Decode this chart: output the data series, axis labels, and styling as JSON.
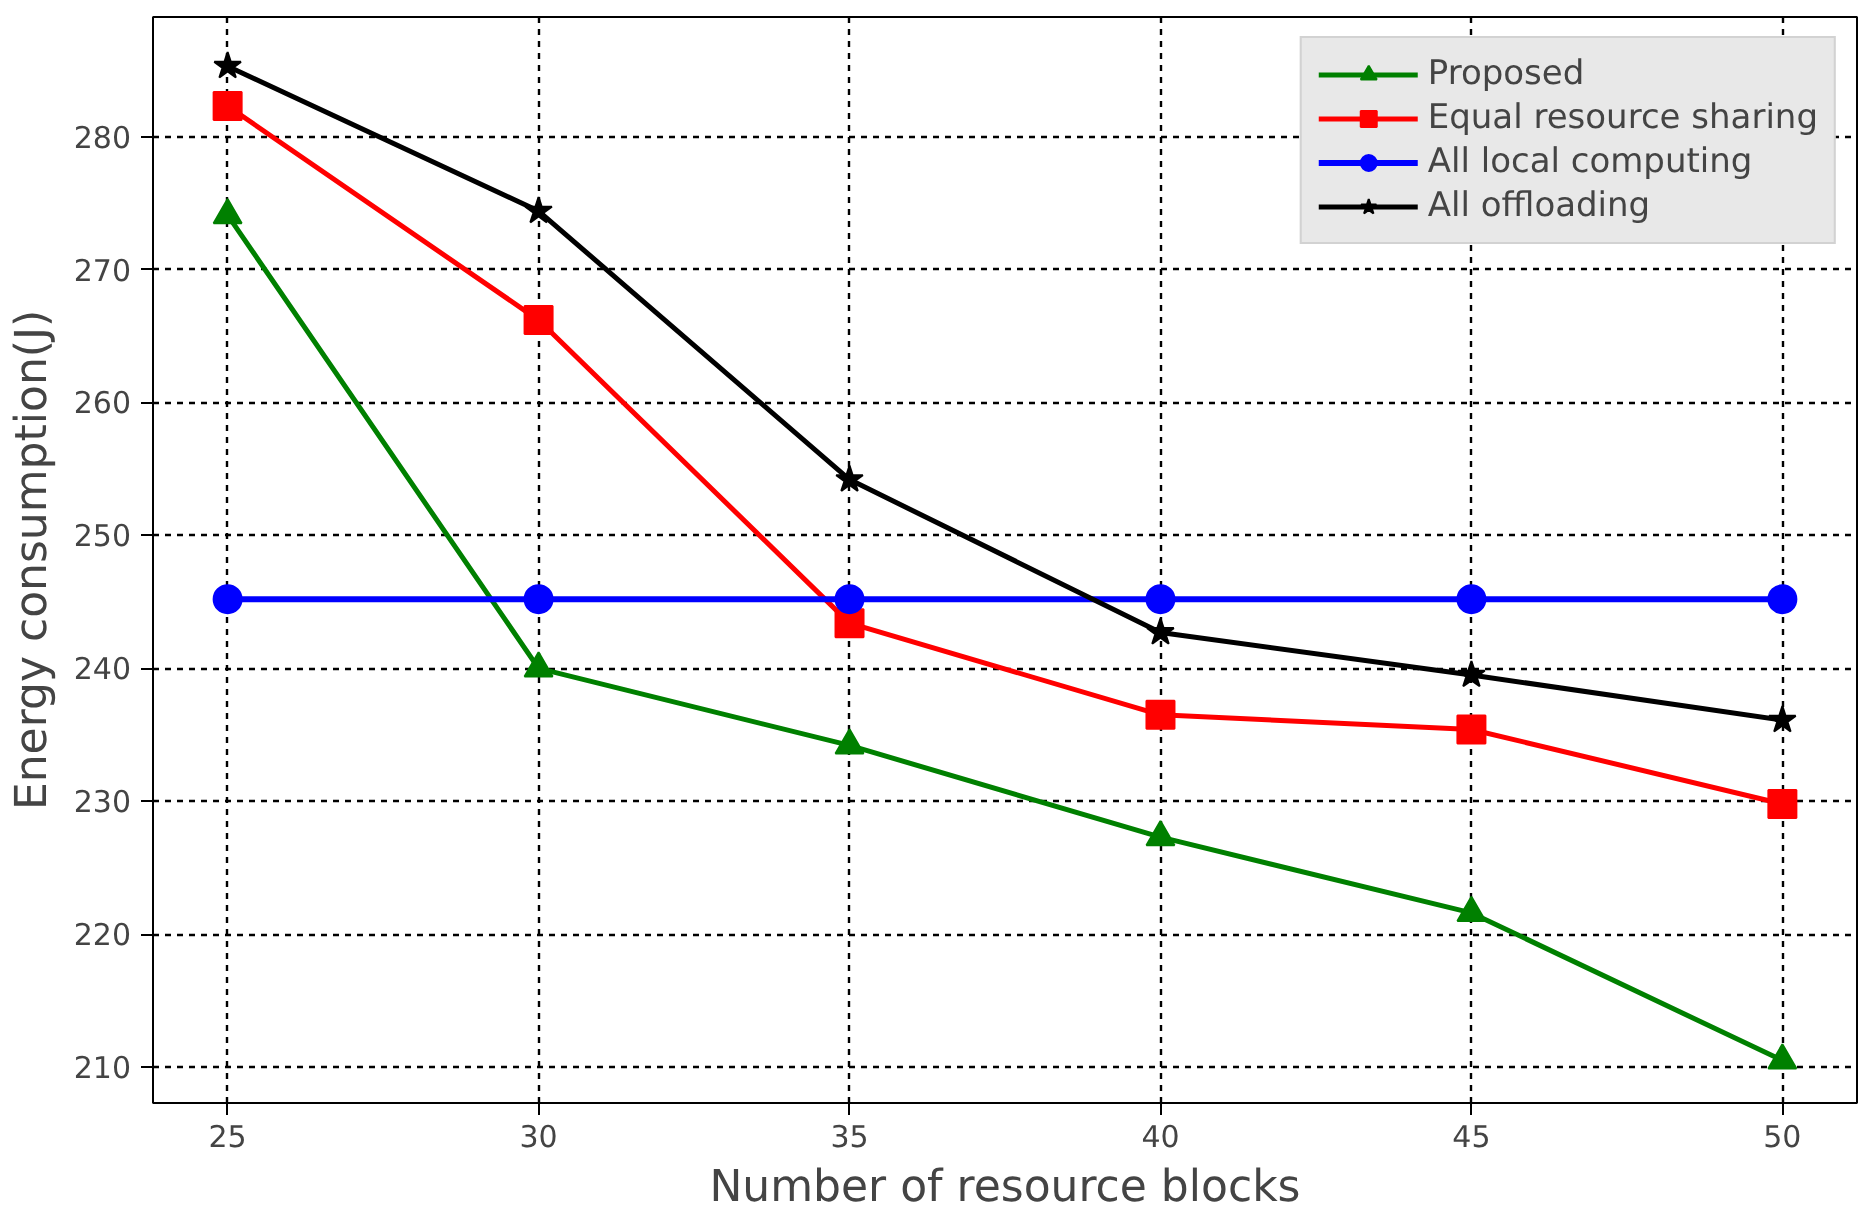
{
  "chart_data": {
    "type": "line",
    "xlabel": "Number of resource blocks",
    "ylabel": "Energy consumption(J)",
    "x": [
      25,
      30,
      35,
      40,
      45,
      50
    ],
    "series": [
      {
        "name": "Proposed",
        "color": "#008000",
        "marker": "triangle",
        "values": [
          274.1,
          240.0,
          234.2,
          227.3,
          221.6,
          210.5
        ]
      },
      {
        "name": "Equal resource sharing",
        "color": "#ff0000",
        "marker": "square",
        "values": [
          282.3,
          266.2,
          243.4,
          236.5,
          235.4,
          229.8
        ]
      },
      {
        "name": "All local computing",
        "color": "#0000ff",
        "marker": "circle",
        "values": [
          245.2,
          245.2,
          245.2,
          245.2,
          245.2,
          245.2
        ]
      },
      {
        "name": "All offloading",
        "color": "#000000",
        "marker": "star",
        "values": [
          285.3,
          274.4,
          254.2,
          242.7,
          239.5,
          236.1
        ]
      }
    ],
    "xlim": [
      23.8,
      51.2
    ],
    "ylim": [
      207.3,
      289
    ],
    "xticks": [
      25,
      30,
      35,
      40,
      45,
      50
    ],
    "yticks": [
      210,
      220,
      230,
      240,
      250,
      260,
      270,
      280
    ],
    "grid": true,
    "legend": "top right",
    "line_style": "solid"
  }
}
